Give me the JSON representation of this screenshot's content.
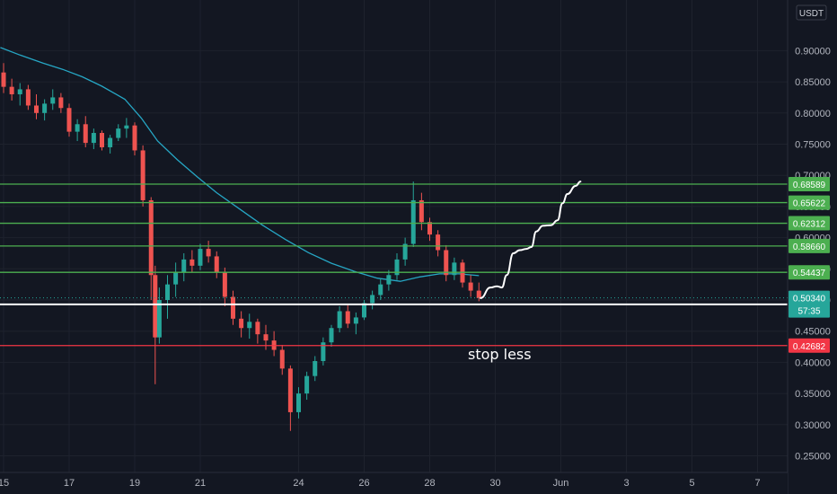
{
  "chart_data": {
    "type": "candlestick",
    "currency": "USDT",
    "ylim": [
      0.22,
      0.95
    ],
    "y_ticks": [
      "0.25000",
      "0.30000",
      "0.35000",
      "0.40000",
      "0.45000",
      "0.50000",
      "0.55000",
      "0.60000",
      "0.65000",
      "0.70000",
      "0.75000",
      "0.80000",
      "0.85000",
      "0.90000"
    ],
    "x_ticks": [
      {
        "label": "15",
        "day": 15
      },
      {
        "label": "17",
        "day": 17
      },
      {
        "label": "19",
        "day": 19
      },
      {
        "label": "21",
        "day": 21
      },
      {
        "label": "24",
        "day": 24
      },
      {
        "label": "26",
        "day": 26
      },
      {
        "label": "28",
        "day": 28
      },
      {
        "label": "30",
        "day": 30
      },
      {
        "label": "Jun",
        "day": 32
      },
      {
        "label": "3",
        "day": 34
      },
      {
        "label": "5",
        "day": 36
      },
      {
        "label": "7",
        "day": 38
      }
    ],
    "horizontal_levels": [
      {
        "value": 0.68589,
        "label": "0.68589",
        "color": "#4caf50"
      },
      {
        "value": 0.65622,
        "label": "0.65622",
        "color": "#4caf50"
      },
      {
        "value": 0.62312,
        "label": "0.62312",
        "color": "#4caf50"
      },
      {
        "value": 0.5866,
        "label": "0.58660",
        "color": "#4caf50"
      },
      {
        "value": 0.54437,
        "label": "0.54437",
        "color": "#4caf50"
      },
      {
        "value": 0.49301,
        "label": "0.49301",
        "color": "#ffffff"
      },
      {
        "value": 0.42682,
        "label": "0.42682",
        "color": "#f23645"
      }
    ],
    "last_price": {
      "value": 0.5034,
      "label": "0.50340",
      "countdown": "57:35",
      "color": "#26a69a"
    },
    "annotation": "stop less",
    "candles": [
      [
        15.0,
        0.865,
        0.88,
        0.832,
        0.842
      ],
      [
        15.25,
        0.842,
        0.855,
        0.82,
        0.83
      ],
      [
        15.5,
        0.83,
        0.848,
        0.812,
        0.838
      ],
      [
        15.75,
        0.838,
        0.845,
        0.805,
        0.812
      ],
      [
        16.0,
        0.812,
        0.83,
        0.79,
        0.8
      ],
      [
        16.25,
        0.8,
        0.822,
        0.788,
        0.815
      ],
      [
        16.5,
        0.815,
        0.838,
        0.805,
        0.825
      ],
      [
        16.75,
        0.825,
        0.832,
        0.8,
        0.808
      ],
      [
        17.0,
        0.808,
        0.815,
        0.762,
        0.77
      ],
      [
        17.25,
        0.77,
        0.79,
        0.755,
        0.782
      ],
      [
        17.5,
        0.782,
        0.795,
        0.745,
        0.752
      ],
      [
        17.75,
        0.752,
        0.775,
        0.742,
        0.768
      ],
      [
        18.0,
        0.768,
        0.772,
        0.74,
        0.745
      ],
      [
        18.25,
        0.745,
        0.765,
        0.735,
        0.76
      ],
      [
        18.5,
        0.76,
        0.782,
        0.755,
        0.775
      ],
      [
        18.75,
        0.775,
        0.792,
        0.76,
        0.78
      ],
      [
        19.0,
        0.78,
        0.785,
        0.732,
        0.74
      ],
      [
        19.25,
        0.74,
        0.748,
        0.65,
        0.66
      ],
      [
        19.5,
        0.66,
        0.665,
        0.5,
        0.54
      ],
      [
        19.625,
        0.54,
        0.555,
        0.365,
        0.44
      ],
      [
        19.75,
        0.44,
        0.52,
        0.43,
        0.5
      ],
      [
        20.0,
        0.5,
        0.54,
        0.47,
        0.525
      ],
      [
        20.25,
        0.525,
        0.56,
        0.505,
        0.545
      ],
      [
        20.5,
        0.545,
        0.575,
        0.53,
        0.565
      ],
      [
        20.75,
        0.565,
        0.58,
        0.545,
        0.555
      ],
      [
        21.0,
        0.555,
        0.59,
        0.548,
        0.582
      ],
      [
        21.25,
        0.582,
        0.595,
        0.56,
        0.57
      ],
      [
        21.5,
        0.57,
        0.578,
        0.535,
        0.545
      ],
      [
        21.75,
        0.545,
        0.552,
        0.49,
        0.505
      ],
      [
        22.0,
        0.505,
        0.515,
        0.46,
        0.47
      ],
      [
        22.25,
        0.47,
        0.482,
        0.44,
        0.455
      ],
      [
        22.5,
        0.455,
        0.478,
        0.438,
        0.465
      ],
      [
        22.75,
        0.465,
        0.47,
        0.43,
        0.445
      ],
      [
        23.0,
        0.445,
        0.46,
        0.42,
        0.435
      ],
      [
        23.25,
        0.435,
        0.45,
        0.41,
        0.42
      ],
      [
        23.5,
        0.42,
        0.428,
        0.38,
        0.39
      ],
      [
        23.75,
        0.39,
        0.395,
        0.29,
        0.32
      ],
      [
        24.0,
        0.32,
        0.36,
        0.31,
        0.35
      ],
      [
        24.25,
        0.35,
        0.385,
        0.34,
        0.378
      ],
      [
        24.5,
        0.378,
        0.41,
        0.37,
        0.402
      ],
      [
        24.75,
        0.402,
        0.44,
        0.395,
        0.432
      ],
      [
        25.0,
        0.432,
        0.46,
        0.425,
        0.455
      ],
      [
        25.25,
        0.455,
        0.49,
        0.448,
        0.482
      ],
      [
        25.5,
        0.482,
        0.492,
        0.455,
        0.462
      ],
      [
        25.75,
        0.462,
        0.48,
        0.445,
        0.472
      ],
      [
        26.0,
        0.472,
        0.5,
        0.468,
        0.495
      ],
      [
        26.25,
        0.495,
        0.515,
        0.485,
        0.508
      ],
      [
        26.5,
        0.508,
        0.535,
        0.5,
        0.525
      ],
      [
        26.75,
        0.525,
        0.548,
        0.515,
        0.54
      ],
      [
        27.0,
        0.54,
        0.575,
        0.532,
        0.565
      ],
      [
        27.25,
        0.565,
        0.6,
        0.555,
        0.59
      ],
      [
        27.5,
        0.59,
        0.69,
        0.585,
        0.66
      ],
      [
        27.75,
        0.66,
        0.672,
        0.612,
        0.625
      ],
      [
        28.0,
        0.625,
        0.632,
        0.595,
        0.605
      ],
      [
        28.25,
        0.605,
        0.612,
        0.57,
        0.58
      ],
      [
        28.5,
        0.58,
        0.588,
        0.53,
        0.54
      ],
      [
        28.75,
        0.54,
        0.568,
        0.532,
        0.56
      ],
      [
        29.0,
        0.56,
        0.565,
        0.52,
        0.528
      ],
      [
        29.25,
        0.528,
        0.54,
        0.505,
        0.515
      ],
      [
        29.5,
        0.515,
        0.528,
        0.498,
        0.503
      ]
    ],
    "ma_series": {
      "color": "#26a6c4",
      "points": [
        [
          14.9,
          0.905
        ],
        [
          15.5,
          0.893
        ],
        [
          16.2,
          0.88
        ],
        [
          16.8,
          0.87
        ],
        [
          17.4,
          0.858
        ],
        [
          18.0,
          0.843
        ],
        [
          18.7,
          0.822
        ],
        [
          19.2,
          0.792
        ],
        [
          19.7,
          0.755
        ],
        [
          20.3,
          0.725
        ],
        [
          20.9,
          0.698
        ],
        [
          21.5,
          0.672
        ],
        [
          22.2,
          0.646
        ],
        [
          22.9,
          0.62
        ],
        [
          23.6,
          0.597
        ],
        [
          24.3,
          0.576
        ],
        [
          25.0,
          0.559
        ],
        [
          25.7,
          0.546
        ],
        [
          26.4,
          0.535
        ],
        [
          27.1,
          0.53
        ],
        [
          27.7,
          0.537
        ],
        [
          28.3,
          0.542
        ],
        [
          28.9,
          0.542
        ],
        [
          29.5,
          0.539
        ]
      ]
    },
    "projection_path": [
      [
        29.55,
        0.503
      ],
      [
        29.85,
        0.52
      ],
      [
        30.05,
        0.522
      ],
      [
        30.2,
        0.52
      ],
      [
        30.35,
        0.54
      ],
      [
        30.55,
        0.575
      ],
      [
        30.75,
        0.58
      ],
      [
        30.95,
        0.582
      ],
      [
        31.1,
        0.585
      ],
      [
        31.25,
        0.61
      ],
      [
        31.45,
        0.619
      ],
      [
        31.7,
        0.62
      ],
      [
        31.9,
        0.628
      ],
      [
        32.05,
        0.655
      ],
      [
        32.2,
        0.67
      ],
      [
        32.45,
        0.683
      ],
      [
        32.6,
        0.69
      ]
    ]
  }
}
